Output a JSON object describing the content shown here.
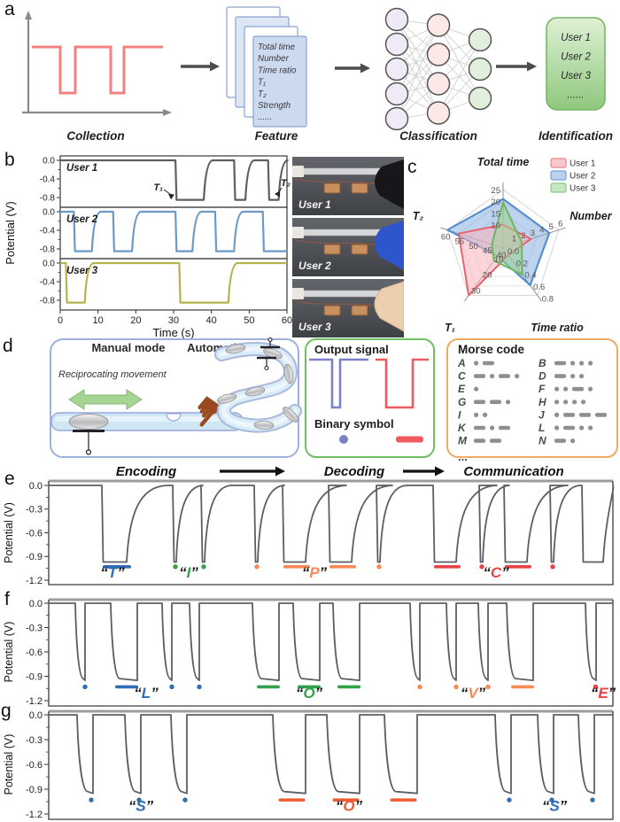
{
  "figure": {
    "panel_labels": [
      "a",
      "b",
      "c",
      "d",
      "e",
      "f",
      "g"
    ]
  },
  "panel_a": {
    "captions": [
      "Collection",
      "Feature",
      "Classification",
      "Identification"
    ],
    "feature_list": [
      "Total time",
      "Number",
      "Time ratio",
      "T₁",
      "T₂",
      "Strength",
      "......"
    ],
    "identification_list": [
      "User 1",
      "User 2",
      "User 3",
      "......"
    ],
    "nn_layers": [
      5,
      4,
      3
    ],
    "signal": {
      "color": "#f0817f",
      "x_start": 36,
      "x_end": 184,
      "high_y": 53,
      "low_y": 105,
      "pulses": [
        [
          68,
          85
        ],
        [
          125,
          140
        ]
      ]
    }
  },
  "panel_b": {
    "photos": [
      {
        "label": "User 1",
        "hand_color": "#17171a"
      },
      {
        "label": "User 2",
        "hand_color": "#2e55cb"
      },
      {
        "label": "User 3",
        "hand_color": "#eccfae"
      }
    ]
  },
  "panel_d": {
    "manual_title": "Manual mode",
    "auto_title": "Automatic mode",
    "reciprocating_label": "Reciprocating movement",
    "encoding_label": "Encoding",
    "decoding_label": "Decoding",
    "communication_label": "Communication",
    "output_title": "Output signal",
    "binary_title": "Binary symbol",
    "dot_color": "#7b80c8",
    "dash_color": "#ee5a5e",
    "morse_title": "Morse code",
    "morse_more": "...",
    "morse": [
      [
        "A",
        ".-"
      ],
      [
        "B",
        "-..."
      ],
      [
        "C",
        "-.-."
      ],
      [
        "D",
        "-.."
      ],
      [
        "E",
        "."
      ],
      [
        "F",
        "..-."
      ],
      [
        "G",
        "--."
      ],
      [
        "H",
        "...."
      ],
      [
        "I",
        ".."
      ],
      [
        "J",
        ".---"
      ],
      [
        "K",
        "-.-"
      ],
      [
        "L",
        ".-.."
      ],
      [
        "M",
        "--"
      ],
      [
        "N",
        "-."
      ]
    ]
  },
  "chart_data": [
    {
      "id": "b",
      "type": "line",
      "xlabel": "Time (s)",
      "ylabel": "Potential (V)",
      "xlim": [
        0,
        60
      ],
      "xticks": [
        0,
        10,
        20,
        30,
        40,
        50,
        60
      ],
      "yticks": [
        0,
        -0.4,
        -0.8
      ],
      "low_level": -0.85,
      "series": [
        {
          "name": "User 1",
          "color": "#5f5f5f",
          "pulses": [
            [
              30.5,
              38
            ],
            [
              46,
              49
            ],
            [
              55,
              57.8
            ]
          ]
        },
        {
          "name": "User 2",
          "color": "#6b9ac9",
          "pulses": [
            [
              3.6,
              8.4
            ],
            [
              14,
              19
            ],
            [
              30.5,
              35
            ],
            [
              41,
              46
            ],
            [
              53.6,
              61
            ]
          ]
        },
        {
          "name": "User 3",
          "color": "#b8b24e",
          "pulses": [
            [
              1.5,
              6.5
            ],
            [
              31.5,
              44.5
            ]
          ]
        }
      ],
      "annotations": [
        {
          "text": "T₁"
        },
        {
          "text": "T₂"
        }
      ]
    },
    {
      "id": "c",
      "type": "radar",
      "axes": [
        {
          "label": "Total time",
          "min": 0,
          "max": 25,
          "ticks": [
            10,
            15,
            20,
            25
          ]
        },
        {
          "label": "Number",
          "min": 0,
          "max": 6,
          "ticks": [
            1,
            2,
            3,
            4,
            5,
            6
          ]
        },
        {
          "label": "Time ratio",
          "min": 0,
          "max": 0.8,
          "ticks": [
            0.0,
            0.2,
            0.4,
            0.6,
            0.8
          ]
        },
        {
          "label": "T₁",
          "min": 0,
          "max": 30,
          "ticks": [
            10,
            20,
            30
          ]
        },
        {
          "label": "T₂",
          "min": 40,
          "max": 60,
          "ticks": [
            40,
            45,
            50,
            55,
            60
          ]
        }
      ],
      "series": [
        {
          "name": "User 2",
          "stroke": "#4f8cc9",
          "fill": "rgba(125,168,220,0.50)",
          "values": [
            21,
            5,
            0.63,
            5,
            60
          ]
        },
        {
          "name": "User 1",
          "stroke": "#e8636b",
          "fill": "rgba(247,178,188,0.55)",
          "values": [
            10,
            3,
            0.12,
            30,
            56
          ]
        },
        {
          "name": "User 3",
          "stroke": "#6cb85f",
          "fill": "rgba(158,210,148,0.55)",
          "values": [
            19.5,
            2,
            0.45,
            8,
            44
          ]
        }
      ],
      "legend": [
        {
          "label": "User 1",
          "fill": "#f9c8cd",
          "stroke": "#e8848b"
        },
        {
          "label": "User 2",
          "fill": "#bdd2ea",
          "stroke": "#74a3d4"
        },
        {
          "label": "User 3",
          "fill": "#c9e6c4",
          "stroke": "#8ac983"
        }
      ]
    },
    {
      "id": "e",
      "type": "line",
      "ylabel": "Potential (V)",
      "yticks": [
        0,
        -0.3,
        -0.6,
        -0.9,
        -1.2
      ],
      "style": "sharp-drop",
      "low": -0.97,
      "groups": [
        {
          "letter": "T",
          "color": "#2f6eb5",
          "label_x": 72,
          "pulses": [
            [
              60,
              28,
              "dash"
            ]
          ]
        },
        {
          "letter": "I",
          "color": "#33a04a",
          "label_x": 158,
          "pulses": [
            [
              140,
              4,
              "dot"
            ],
            [
              172,
              4,
              "dot"
            ]
          ]
        },
        {
          "letter": "P",
          "color": "#f58a55",
          "label_x": 300,
          "pulses": [
            [
              232,
              4,
              "dot"
            ],
            [
              264,
              26,
              "dash"
            ],
            [
              316,
              26,
              "dash"
            ],
            [
              370,
              4,
              "dot"
            ]
          ]
        },
        {
          "letter": "C",
          "color": "#e94345",
          "label_x": 505,
          "pulses": [
            [
              434,
              26,
              "dash"
            ],
            [
              486,
              4,
              "dot"
            ],
            [
              514,
              26,
              "dash"
            ],
            [
              566,
              4,
              "dot"
            ]
          ]
        }
      ],
      "extra_pulses": [
        [
          602,
          24,
          "dash"
        ]
      ]
    },
    {
      "id": "f",
      "type": "line",
      "ylabel": "Potential (V)",
      "yticks": [
        0,
        -0.3,
        -0.6,
        -0.9,
        -1.2
      ],
      "style": "curved-drop",
      "low": -0.95,
      "drop_dot": 9,
      "drop_dash": 10,
      "groups": [
        {
          "letter": "L",
          "color": "#2f6eb5",
          "label_x": 110,
          "pulses": [
            [
              30,
              2,
              "dot"
            ],
            [
              70,
              20,
              "dash"
            ],
            [
              128,
              2,
              "dot"
            ],
            [
              159,
              2,
              "dot"
            ]
          ]
        },
        {
          "letter": "O",
          "color": "#33a04a",
          "label_x": 294,
          "pulses": [
            [
              230,
              20,
              "dash"
            ],
            [
              276,
              20,
              "dash"
            ],
            [
              321,
              20,
              "dash"
            ]
          ]
        },
        {
          "letter": "V",
          "color": "#f58a55",
          "label_x": 479,
          "pulses": [
            [
              408,
              2,
              "dot"
            ],
            [
              449,
              2,
              "dot"
            ],
            [
              485,
              2,
              "dot"
            ],
            [
              517,
              20,
              "dash"
            ]
          ]
        },
        {
          "letter": "E",
          "color": "#e94345",
          "label_x": 626,
          "pulses": [
            [
              606,
              3,
              "dot"
            ]
          ]
        }
      ],
      "extra_pulses": []
    },
    {
      "id": "g",
      "type": "line",
      "ylabel": "Potential (V)",
      "yticks": [
        0,
        -0.3,
        -0.6,
        -0.9,
        -1.2
      ],
      "style": "curved-drop",
      "low": -0.95,
      "drop_dot": 12,
      "drop_dash": 13,
      "groups": [
        {
          "letter": "S",
          "color": "#2f6eb5",
          "label_x": 104,
          "pulses": [
            [
              32,
              6,
              "dot"
            ],
            [
              86,
              6,
              "dot"
            ],
            [
              138,
              6,
              "dot"
            ]
          ]
        },
        {
          "letter": "O",
          "color": "#ee5b32",
          "label_x": 339,
          "pulses": [
            [
              253,
              24,
              "dash"
            ],
            [
              314,
              24,
              "dash"
            ],
            [
              379,
              24,
              "dash"
            ]
          ]
        },
        {
          "letter": "S",
          "color": "#2f6eb5",
          "label_x": 571,
          "pulses": [
            [
              504,
              6,
              "dot"
            ],
            [
              552,
              6,
              "dot"
            ],
            [
              598,
              6,
              "dot"
            ]
          ]
        }
      ],
      "extra_pulses": []
    }
  ]
}
